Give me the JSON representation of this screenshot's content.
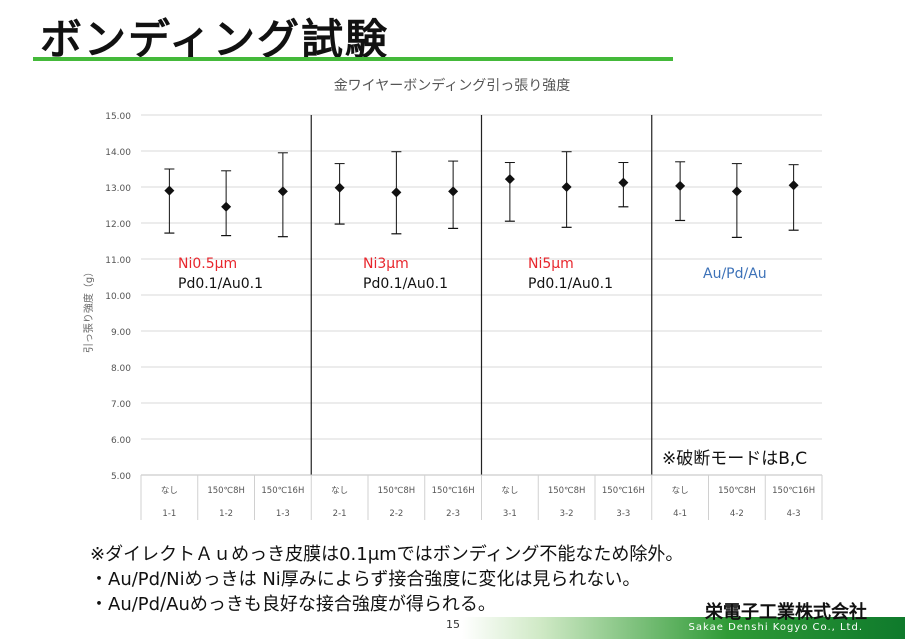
{
  "slide": {
    "title": "ボンディング試験",
    "notes": [
      "※ダイレクトＡｕめっき皮膜は0.1μmではボンディング不能なため除外。",
      "・Au/Pd/Niめっきは Ni厚みによらず接合強度に変化は見られない。",
      "・Au/Pd/Auめっきも良好な接合強度が得られる。"
    ],
    "company": "栄電子工業株式会社",
    "company_en": "Sakae Denshi Kogyo Co., Ltd.",
    "page_number": "15",
    "accent_color": "#44b93a"
  },
  "chart_data": {
    "type": "scatter",
    "title": "金ワイヤーボンディング引っ張り強度",
    "ylabel": "引っ張り強度（g）",
    "ylim": [
      5,
      15
    ],
    "yticks": [
      "5.00",
      "6.00",
      "7.00",
      "8.00",
      "9.00",
      "10.00",
      "11.00",
      "12.00",
      "13.00",
      "14.00",
      "15.00"
    ],
    "categories": [
      {
        "top": "なし",
        "bottom": "1-1"
      },
      {
        "top": "150℃8H",
        "bottom": "1-2"
      },
      {
        "top": "150℃16H",
        "bottom": "1-3"
      },
      {
        "top": "なし",
        "bottom": "2-1"
      },
      {
        "top": "150℃8H",
        "bottom": "2-2"
      },
      {
        "top": "150℃16H",
        "bottom": "2-3"
      },
      {
        "top": "なし",
        "bottom": "3-1"
      },
      {
        "top": "150℃8H",
        "bottom": "3-2"
      },
      {
        "top": "150℃16H",
        "bottom": "3-3"
      },
      {
        "top": "なし",
        "bottom": "4-1"
      },
      {
        "top": "150℃8H",
        "bottom": "4-2"
      },
      {
        "top": "150℃16H",
        "bottom": "4-3"
      }
    ],
    "values": [
      12.9,
      12.45,
      12.88,
      12.98,
      12.85,
      12.88,
      13.22,
      13.0,
      13.12,
      13.03,
      12.88,
      13.05
    ],
    "max": [
      13.5,
      13.45,
      13.95,
      13.65,
      13.98,
      13.72,
      13.68,
      13.98,
      13.68,
      13.7,
      13.65,
      13.62
    ],
    "min": [
      11.72,
      11.65,
      11.62,
      11.97,
      11.7,
      11.85,
      12.05,
      11.88,
      12.45,
      12.07,
      11.6,
      11.8
    ],
    "groups": [
      {
        "line1": "Ni0.5μm",
        "line2": "Pd0.1/Au0.1",
        "color1": "#e8262d",
        "color2": "#111111"
      },
      {
        "line1": "Ni3μm",
        "line2": "Pd0.1/Au0.1",
        "color1": "#e8262d",
        "color2": "#111111"
      },
      {
        "line1": "Ni5μm",
        "line2": "Pd0.1/Au0.1",
        "color1": "#e8262d",
        "color2": "#111111"
      },
      {
        "line1": "Au/Pd/Au",
        "line2": "",
        "color1": "#3d72b8",
        "color2": "#111111"
      }
    ],
    "annotation": "※破断モードはB,C",
    "grid": true
  }
}
